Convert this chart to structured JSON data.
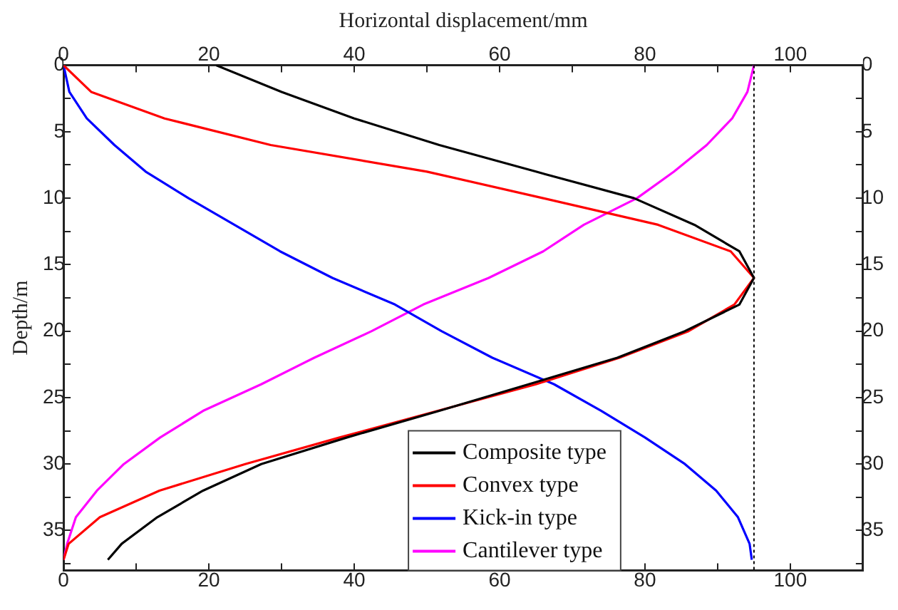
{
  "chart_data": {
    "type": "line",
    "xlabel": "Horizontal displacement/mm",
    "ylabel": "Depth/m",
    "xlim": [
      0,
      110
    ],
    "xticks": [
      0,
      {
        "value": 10,
        "label": null
      },
      20,
      {
        "value": 30,
        "label": null
      },
      40,
      {
        "value": 50,
        "label": null
      },
      60,
      {
        "value": 70,
        "label": null
      },
      80,
      {
        "value": 90,
        "label": null
      },
      100
    ],
    "x2lim": [
      0,
      110
    ],
    "x2ticks": [
      0,
      {
        "value": 10,
        "label": null
      },
      20,
      {
        "value": 30,
        "label": null
      },
      40,
      {
        "value": 50,
        "label": null
      },
      60,
      {
        "value": 70,
        "label": null
      },
      80,
      {
        "value": 90,
        "label": null
      },
      100
    ],
    "ylim": [
      38,
      0
    ],
    "yticks": [
      0,
      {
        "value": 2.5,
        "label": null
      },
      5,
      {
        "value": 7.5,
        "label": null
      },
      10,
      {
        "value": 12.5,
        "label": null
      },
      15,
      {
        "value": 17.5,
        "label": null
      },
      20,
      {
        "value": 22.5,
        "label": null
      },
      25,
      {
        "value": 27.5,
        "label": null
      },
      30,
      {
        "value": 32.5,
        "label": null
      },
      35,
      {
        "value": 37.5,
        "label": null
      }
    ],
    "y2lim": [
      38,
      0
    ],
    "y2ticks": [
      0,
      {
        "value": 2.5,
        "label": null
      },
      5,
      {
        "value": 7.5,
        "label": null
      },
      10,
      {
        "value": 12.5,
        "label": null
      },
      15,
      {
        "value": 17.5,
        "label": null
      },
      20,
      {
        "value": 22.5,
        "label": null
      },
      25,
      {
        "value": 27.5,
        "label": null
      },
      30,
      {
        "value": 32.5,
        "label": null
      },
      35,
      {
        "value": 37.5,
        "label": null
      }
    ],
    "series": [
      {
        "name": "Composite type",
        "color": "#000000",
        "x": [
          21,
          30,
          40,
          51.7,
          65,
          78.5,
          86.8,
          93,
          95,
          93,
          85.5,
          76.2,
          64,
          51.7,
          39,
          27.2,
          19.2,
          12.9,
          8,
          6.1
        ],
        "values": [
          0,
          2,
          4,
          6,
          8,
          10,
          12,
          14,
          16,
          18,
          20,
          22,
          24,
          26,
          28,
          30,
          32,
          34,
          36,
          37.2
        ]
      },
      {
        "name": "Convex type",
        "color": "#ff0000",
        "x": [
          0,
          3.8,
          13.9,
          28.5,
          50,
          66,
          81.8,
          91.8,
          95,
          92.3,
          86,
          76.5,
          65,
          51.5,
          38,
          25,
          13.2,
          5,
          0.7,
          0
        ],
        "values": [
          0,
          2,
          4,
          6,
          8,
          10,
          12,
          14,
          16,
          18,
          20,
          22,
          24,
          26,
          28,
          30,
          32,
          34,
          36,
          37.2
        ]
      },
      {
        "name": "Kick-in type",
        "color": "#0000ff",
        "x": [
          0,
          0.8,
          3.2,
          7,
          11.3,
          17.2,
          23.5,
          29.8,
          37,
          45.6,
          52,
          59,
          67.5,
          74,
          80,
          85.5,
          89.8,
          92.8,
          94.4,
          94.7
        ],
        "values": [
          0,
          2,
          4,
          6,
          8,
          10,
          12,
          14,
          16,
          18,
          20,
          22,
          24,
          26,
          28,
          30,
          32,
          34,
          36,
          37.2
        ]
      },
      {
        "name": "Cantilever type",
        "color": "#ff00ff",
        "x": [
          95,
          94.1,
          92,
          88.5,
          84,
          78.9,
          71.6,
          66,
          58.5,
          49.5,
          42.4,
          34.5,
          27.2,
          19.2,
          13.3,
          8.3,
          4.6,
          1.7,
          0.5,
          0
        ],
        "values": [
          0,
          2,
          4,
          6,
          8,
          10,
          12,
          14,
          16,
          18,
          20,
          22,
          24,
          26,
          28,
          30,
          32,
          34,
          36,
          37.2
        ]
      }
    ],
    "ref_lines": [
      {
        "axis": "x",
        "value": 95,
        "color": "#000000",
        "line_style": "dotted"
      }
    ],
    "legend": "bottom right",
    "grid": false,
    "marker": "none",
    "line_style": "solid"
  }
}
